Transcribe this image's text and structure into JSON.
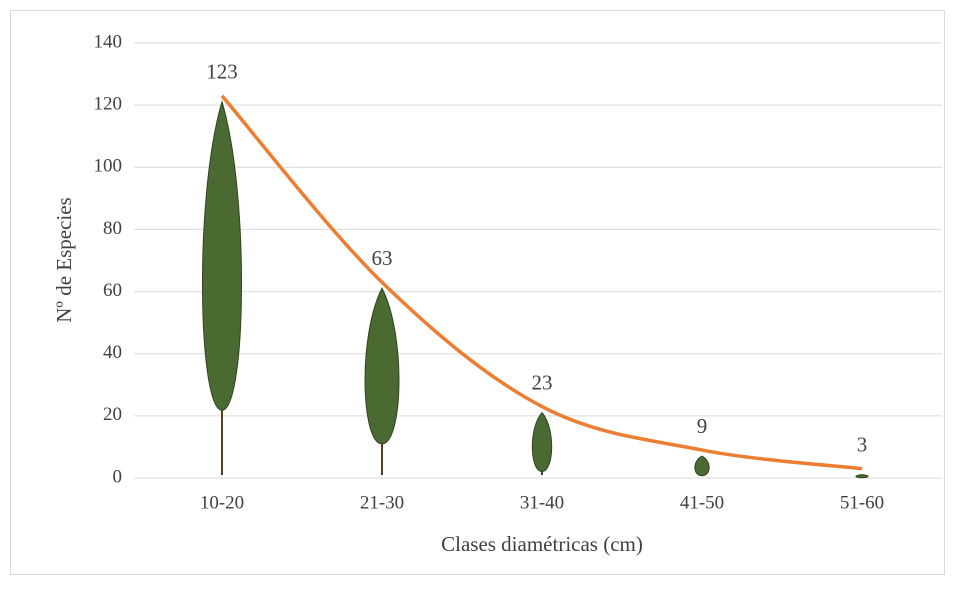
{
  "chart_data": {
    "type": "line",
    "x_label": "Clases diamétricas (cm)",
    "y_label": "Nº de Especies",
    "categories": [
      "10-20",
      "21-30",
      "31-40",
      "41-50",
      "51-60"
    ],
    "values": [
      123,
      63,
      23,
      9,
      3
    ],
    "color": "#ed7d31",
    "ylim": [
      0,
      140
    ],
    "yticks": [
      0,
      20,
      40,
      60,
      80,
      100,
      120,
      140
    ],
    "grid": true
  }
}
